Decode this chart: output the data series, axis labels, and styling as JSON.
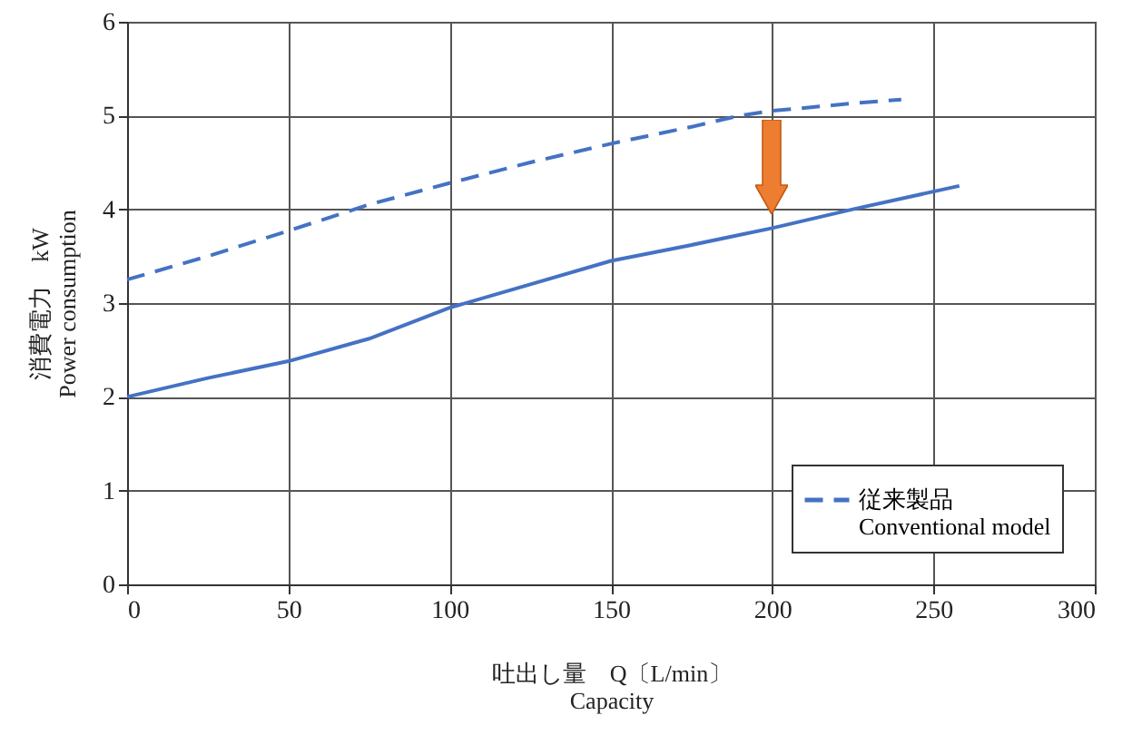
{
  "chart_data": {
    "type": "line",
    "xlabel": "吐出し量　Q〔L/min〕\nCapacity",
    "ylabel": "消費電力　kW\nPower consumption",
    "x": [
      0,
      25,
      50,
      75,
      100,
      125,
      150,
      175,
      200,
      225,
      258
    ],
    "series": [
      {
        "color": "#4472c4",
        "line_style": "solid",
        "values": [
          2,
          2.2,
          2.38,
          2.62,
          2.95,
          3.2,
          3.45,
          3.62,
          3.8,
          4.0,
          4.25
        ]
      },
      {
        "name": "従来製品\nConventional model",
        "color": "#4472c4",
        "line_style": "dashed",
        "x": [
          0,
          25,
          50,
          75,
          100,
          125,
          150,
          175,
          190,
          200,
          225,
          240
        ],
        "values": [
          3.25,
          3.5,
          3.77,
          4.05,
          4.28,
          4.5,
          4.7,
          4.88,
          5.0,
          5.05,
          5.13,
          5.17
        ]
      }
    ],
    "xlim": [
      0,
      300
    ],
    "xticks": [
      0,
      50,
      100,
      150,
      200,
      250,
      300
    ],
    "ylim": [
      0,
      6
    ],
    "yticks": [
      0,
      1,
      2,
      3,
      4,
      5,
      6
    ],
    "grid": true,
    "legend": "bottom right",
    "marker": "none"
  }
}
